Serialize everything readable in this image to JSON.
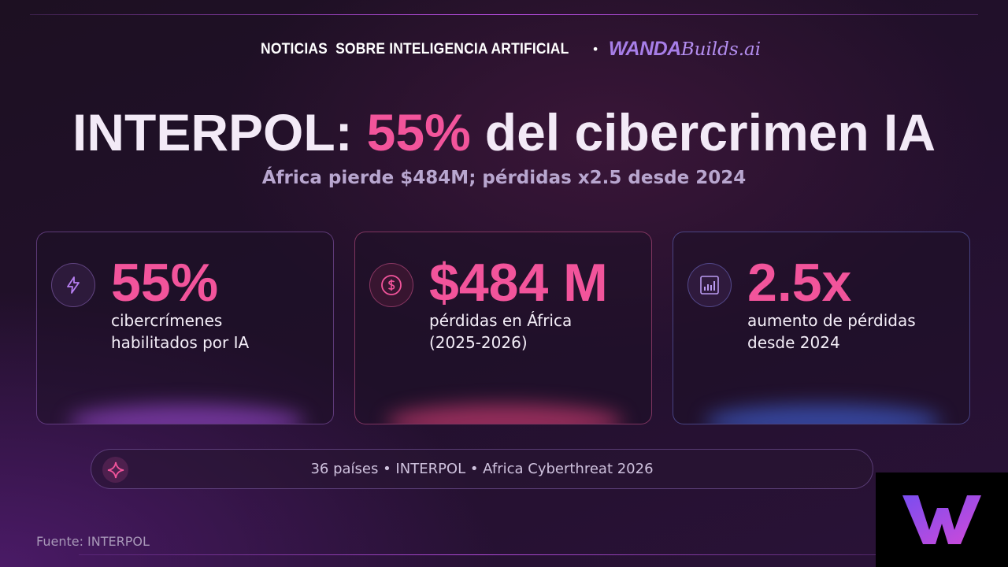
{
  "header": {
    "kicker": "NOTICIAS  SOBRE INTELIGENCIA ARTIFICIAL",
    "separator": "•",
    "brand": {
      "main": "WANDA",
      "script": "Builds.ai"
    }
  },
  "title": {
    "prefix": "INTERPOL:",
    "highlight": "55%",
    "suffix": "del cibercrimen IA"
  },
  "subtitle": "África pierde $484M; pérdidas x2.5 desde 2024",
  "cards": [
    {
      "value": "55%",
      "label": "cibercrímenes habilitados por IA"
    },
    {
      "value": "$484 M",
      "label": "pérdidas en África (2025-2026)"
    },
    {
      "value": "2.5x",
      "label": "aumento de pérdidas desde 2024"
    }
  ],
  "footer_note": "36 países • INTERPOL • Africa Cyberthreat 2026",
  "source": "Fuente: INTERPOL"
}
